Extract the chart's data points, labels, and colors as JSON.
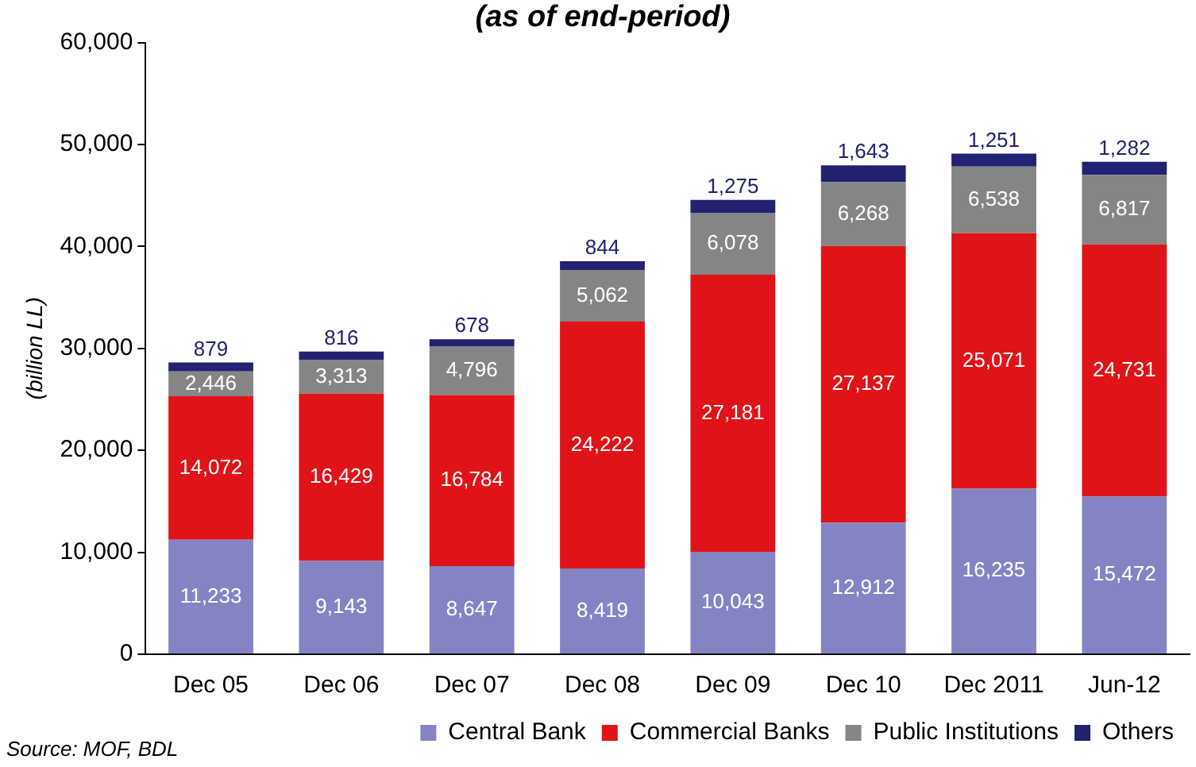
{
  "chart_data": {
    "type": "bar",
    "subtitle": "(as of end-period)",
    "ylabel": "(billion LL)",
    "categories": [
      "Dec 05",
      "Dec 06",
      "Dec 07",
      "Dec 08",
      "Dec 09",
      "Dec 10",
      "Dec 2011",
      "Jun-12"
    ],
    "series": [
      {
        "name": "Central Bank",
        "color": "#8484c4",
        "values": [
          11233,
          9143,
          8647,
          8419,
          10043,
          12912,
          16235,
          15472
        ],
        "value_labels": [
          "11,233",
          "9,143",
          "8,647",
          "8,419",
          "10,043",
          "12,912",
          "16,235",
          "15,472"
        ]
      },
      {
        "name": "Commercial Banks",
        "color": "#e01418",
        "values": [
          14072,
          16429,
          16784,
          24222,
          27181,
          27137,
          25071,
          24731
        ],
        "value_labels": [
          "14,072",
          "16,429",
          "16,784",
          "24,222",
          "27,181",
          "27,137",
          "25,071",
          "24,731"
        ]
      },
      {
        "name": "Public Institutions",
        "color": "#858585",
        "values": [
          2446,
          3313,
          4796,
          5062,
          6078,
          6268,
          6538,
          6817
        ],
        "value_labels": [
          "2,446",
          "3,313",
          "4,796",
          "5,062",
          "6,078",
          "6,268",
          "6,538",
          "6,817"
        ]
      },
      {
        "name": "Others",
        "color": "#222272",
        "values": [
          879,
          816,
          678,
          844,
          1275,
          1643,
          1251,
          1282
        ],
        "value_labels": [
          "879",
          "816",
          "678",
          "844",
          "1,275",
          "1,643",
          "1,251",
          "1,282"
        ]
      }
    ],
    "stacked": true,
    "ylim": [
      0,
      60000
    ],
    "yticks": [
      0,
      {
        "value": 10000,
        "label": "10,000"
      },
      {
        "value": 20000,
        "label": "20,000"
      },
      {
        "value": 30000,
        "label": "30,000"
      },
      {
        "value": 40000,
        "label": "40,000"
      },
      {
        "value": 50000,
        "label": "50,000"
      },
      {
        "value": 60000,
        "label": "60,000"
      }
    ],
    "grid": false,
    "legend": "bottom",
    "annotations": [
      "Source: MOF, BDL"
    ]
  }
}
